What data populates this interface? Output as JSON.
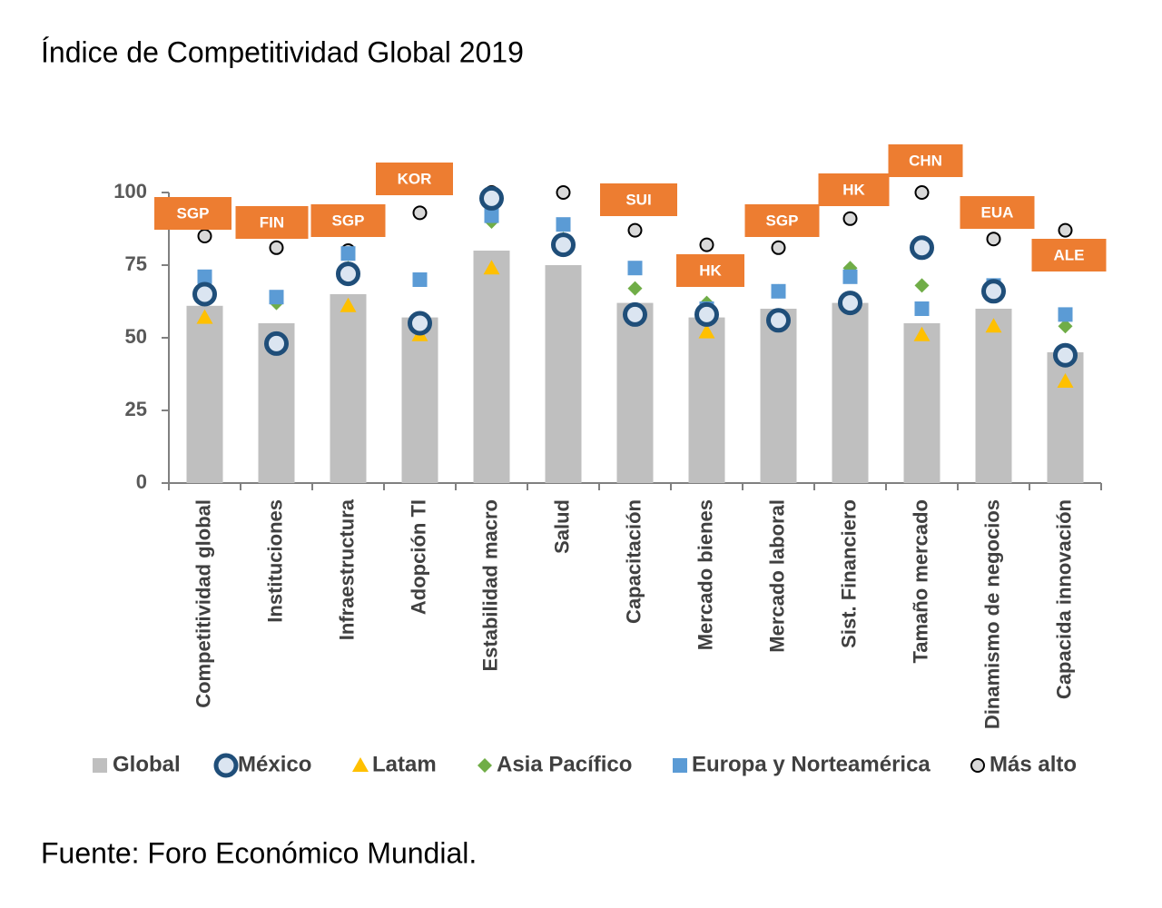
{
  "chart_data": {
    "type": "bar",
    "title": "Índice de Competitividad Global 2019",
    "source": "Fuente: Foro Económico Mundial.",
    "categories": [
      "Competitividad global",
      "Instituciones",
      "Infraestructura",
      "Adopción TI",
      "Estabilidad macro",
      "Salud",
      "Capacitación",
      "Mercado bienes",
      "Mercado laboral",
      "Sist. Financiero",
      "Tamaño mercado",
      "Dinamismo de negocios",
      "Capacida innovación"
    ],
    "series": [
      {
        "name": "Global",
        "marker": "bar",
        "color": "#bfbfbf",
        "values": [
          61,
          55,
          65,
          57,
          80,
          75,
          62,
          57,
          60,
          62,
          55,
          60,
          45
        ]
      },
      {
        "name": "México",
        "marker": "ring",
        "color": "#1f4e79",
        "values": [
          65,
          48,
          72,
          55,
          98,
          82,
          58,
          58,
          56,
          62,
          81,
          66,
          44
        ]
      },
      {
        "name": "Latam",
        "marker": "triangle",
        "color": "#ffc000",
        "values": [
          57,
          47,
          61,
          51,
          74,
          82,
          59,
          52,
          56,
          61,
          51,
          54,
          35
        ]
      },
      {
        "name": "Asia Pacífico",
        "marker": "diamond",
        "color": "#70ad47",
        "values": [
          70,
          62,
          74,
          70,
          90,
          84,
          67,
          62,
          66,
          74,
          68,
          66,
          54
        ]
      },
      {
        "name": "Europa y Norteamérica",
        "marker": "square",
        "color": "#5b9bd5",
        "values": [
          71,
          64,
          79,
          70,
          92,
          89,
          74,
          60,
          66,
          71,
          60,
          68,
          58
        ]
      },
      {
        "name": "Más alto",
        "marker": "circle",
        "color": "#d9d9d9",
        "values": [
          85,
          81,
          80,
          93,
          100,
          100,
          87,
          82,
          81,
          91,
          100,
          84,
          87
        ]
      }
    ],
    "leader_labels": [
      "SGP",
      "FIN",
      "SGP",
      "KOR",
      null,
      null,
      "SUI",
      "HK",
      "SGP",
      "HK",
      "CHN",
      "EUA",
      "ALE"
    ],
    "leader_color": "#ed7d31",
    "ylim": [
      0,
      100
    ],
    "yticks": [
      0,
      25,
      50,
      75,
      100
    ],
    "grid": false
  }
}
